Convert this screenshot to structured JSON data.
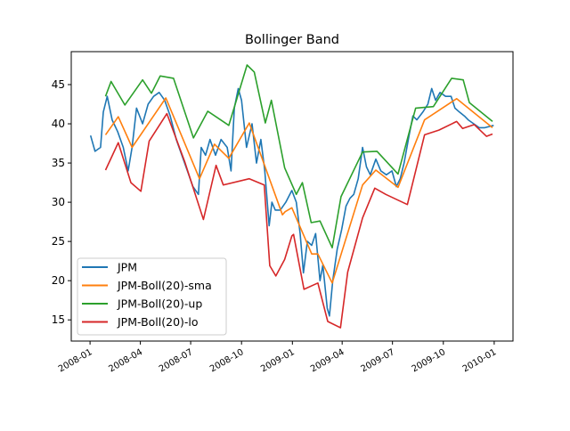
{
  "chart_data": {
    "type": "line",
    "title": "Bollinger Band",
    "xlabel": "",
    "ylabel": "",
    "xlim": [
      "2007-11-28",
      "2010-02-04"
    ],
    "ylim": [
      12.3,
      49.2
    ],
    "grid": false,
    "legend_position": "lower-left",
    "x_ticks": [
      "2008-01",
      "2008-04",
      "2008-07",
      "2008-10",
      "2009-01",
      "2009-04",
      "2009-07",
      "2009-10",
      "2010-01"
    ],
    "y_ticks": [
      15,
      20,
      25,
      30,
      35,
      40,
      45
    ],
    "series": [
      {
        "name": "JPM",
        "color": "#1f77b4",
        "x": [
          "2008-01-02",
          "2008-01-10",
          "2008-01-20",
          "2008-01-25",
          "2008-02-01",
          "2008-02-10",
          "2008-02-20",
          "2008-03-01",
          "2008-03-10",
          "2008-03-17",
          "2008-03-25",
          "2008-04-05",
          "2008-04-15",
          "2008-04-25",
          "2008-05-05",
          "2008-05-15",
          "2008-05-25",
          "2008-06-05",
          "2008-06-15",
          "2008-06-25",
          "2008-07-05",
          "2008-07-15",
          "2008-07-20",
          "2008-07-28",
          "2008-08-05",
          "2008-08-15",
          "2008-08-25",
          "2008-09-05",
          "2008-09-12",
          "2008-09-18",
          "2008-09-25",
          "2008-10-01",
          "2008-10-10",
          "2008-10-20",
          "2008-10-28",
          "2008-11-05",
          "2008-11-12",
          "2008-11-20",
          "2008-11-25",
          "2008-12-01",
          "2008-12-10",
          "2008-12-20",
          "2008-12-31",
          "2009-01-08",
          "2009-01-15",
          "2009-01-21",
          "2009-01-28",
          "2009-02-05",
          "2009-02-12",
          "2009-02-20",
          "2009-02-25",
          "2009-03-05",
          "2009-03-09",
          "2009-03-15",
          "2009-03-23",
          "2009-03-31",
          "2009-04-08",
          "2009-04-15",
          "2009-04-22",
          "2009-04-30",
          "2009-05-08",
          "2009-05-15",
          "2009-05-22",
          "2009-06-01",
          "2009-06-10",
          "2009-06-20",
          "2009-06-30",
          "2009-07-08",
          "2009-07-15",
          "2009-07-22",
          "2009-07-31",
          "2009-08-07",
          "2009-08-14",
          "2009-08-25",
          "2009-09-03",
          "2009-09-10",
          "2009-09-17",
          "2009-09-25",
          "2009-10-05",
          "2009-10-15",
          "2009-10-22",
          "2009-10-30",
          "2009-11-08",
          "2009-11-15",
          "2009-11-25",
          "2009-12-05",
          "2009-12-15",
          "2009-12-31"
        ],
        "values": [
          38.5,
          36.5,
          37,
          41.5,
          43.5,
          40.5,
          39,
          37,
          34,
          37,
          42,
          40,
          42.5,
          43.5,
          44,
          43,
          41,
          38,
          36,
          34,
          32,
          31,
          37,
          36,
          38,
          36,
          38,
          37,
          34,
          42,
          44.5,
          43,
          37,
          40,
          35,
          38,
          34,
          27,
          30,
          29,
          29,
          30,
          31.5,
          30,
          26,
          21,
          25,
          24.5,
          26,
          20,
          22,
          16.5,
          15.5,
          20,
          24,
          26.5,
          29.5,
          30.5,
          31,
          33,
          37,
          34.5,
          33.5,
          35.5,
          34,
          33.5,
          34,
          32,
          33,
          35,
          38.5,
          41,
          40.5,
          41.5,
          42.5,
          44.5,
          43,
          44,
          43.5,
          43.5,
          42,
          41.5,
          41,
          40.5,
          40,
          39.5,
          39.5,
          39.8
        ]
      },
      {
        "name": "JPM-Boll(20)-sma",
        "color": "#ff7f0e",
        "x": [
          "2008-01-29",
          "2008-02-21",
          "2008-03-17",
          "2008-05-17",
          "2008-07-17",
          "2008-08-13",
          "2008-09-08",
          "2008-10-15",
          "2008-12-14",
          "2008-12-19",
          "2008-12-31",
          "2009-02-05",
          "2009-02-16",
          "2009-03-14",
          "2009-05-08",
          "2009-06-01",
          "2009-07-11",
          "2009-08-28",
          "2009-10-25",
          "2009-12-29"
        ],
        "values": [
          38.6,
          40.9,
          37.0,
          43.3,
          33.0,
          37.4,
          35.6,
          40.1,
          28.4,
          28.8,
          29.3,
          23.4,
          23.4,
          19.7,
          32.2,
          34.1,
          31.9,
          40.5,
          43.2,
          39.5
        ]
      },
      {
        "name": "JPM-Boll(20)-up",
        "color": "#2ca02c",
        "x": [
          "2008-01-29",
          "2008-02-08",
          "2008-03-04",
          "2008-04-05",
          "2008-04-21",
          "2008-05-07",
          "2008-05-31",
          "2008-07-06",
          "2008-08-01",
          "2008-09-08",
          "2008-10-11",
          "2008-10-24",
          "2008-11-13",
          "2008-11-24",
          "2008-12-18",
          "2009-01-08",
          "2009-01-19",
          "2009-02-04",
          "2009-02-20",
          "2009-03-14",
          "2009-03-30",
          "2009-05-08",
          "2009-06-03",
          "2009-07-11",
          "2009-08-12",
          "2009-09-13",
          "2009-10-16",
          "2009-11-06",
          "2009-11-17",
          "2009-12-29"
        ],
        "values": [
          43.5,
          45.4,
          42.4,
          45.6,
          43.9,
          46.1,
          45.8,
          38.2,
          41.6,
          39.8,
          47.5,
          46.6,
          40.1,
          43.0,
          34.4,
          31.0,
          32.5,
          27.4,
          27.6,
          24.2,
          30.7,
          36.4,
          36.5,
          33.6,
          42.0,
          42.2,
          45.8,
          45.6,
          42.7,
          40.3
        ]
      },
      {
        "name": "JPM-Boll(20)-lo",
        "color": "#d62728",
        "x": [
          "2008-01-29",
          "2008-02-21",
          "2008-03-15",
          "2008-04-02",
          "2008-04-17",
          "2008-05-19",
          "2008-06-20",
          "2008-07-24",
          "2008-08-16",
          "2008-08-29",
          "2008-10-15",
          "2008-11-11",
          "2008-11-21",
          "2008-12-02",
          "2008-12-18",
          "2008-12-31",
          "2009-01-03",
          "2009-01-22",
          "2009-02-16",
          "2009-03-06",
          "2009-03-29",
          "2009-04-11",
          "2009-05-08",
          "2009-05-30",
          "2009-06-19",
          "2009-07-28",
          "2009-08-28",
          "2009-09-23",
          "2009-10-25",
          "2009-11-05",
          "2009-11-26",
          "2009-12-18",
          "2009-12-29"
        ],
        "values": [
          34.1,
          37.6,
          32.5,
          31.4,
          37.8,
          41.3,
          35.2,
          27.8,
          34.7,
          32.2,
          33.0,
          32.2,
          21.9,
          20.6,
          22.7,
          25.7,
          25.9,
          18.9,
          19.7,
          14.8,
          14.0,
          21.1,
          28.0,
          31.8,
          31.0,
          29.7,
          38.6,
          39.2,
          40.3,
          39.4,
          39.9,
          38.4,
          38.7
        ]
      }
    ]
  }
}
